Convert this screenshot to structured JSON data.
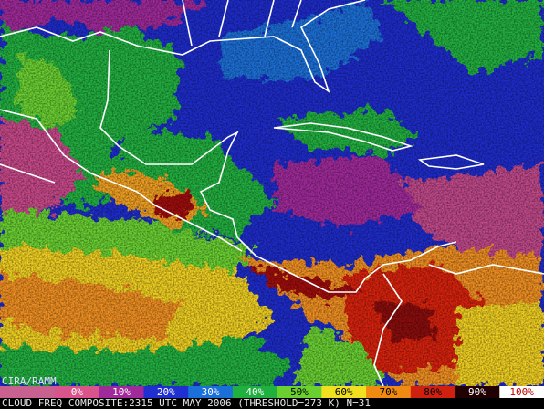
{
  "watermark": "CIRA/RAMM",
  "legend": {
    "items": [
      {
        "label": "0%",
        "color": "#d8548a"
      },
      {
        "label": "10%",
        "color": "#a02a9a"
      },
      {
        "label": "20%",
        "color": "#2030d0"
      },
      {
        "label": "30%",
        "color": "#1a70d8"
      },
      {
        "label": "40%",
        "color": "#20b040"
      },
      {
        "label": "50%",
        "color": "#6ad030"
      },
      {
        "label": "60%",
        "color": "#f0e020"
      },
      {
        "label": "70%",
        "color": "#f08a10"
      },
      {
        "label": "80%",
        "color": "#d02010"
      },
      {
        "label": "90%",
        "color": "#200000"
      },
      {
        "label": "100%",
        "color": "#ffffff"
      }
    ]
  },
  "caption": "CLOUD FREQ COMPOSITE:2315 UTC MAY 2006 (THRESHOLD=273 K) N=31"
}
